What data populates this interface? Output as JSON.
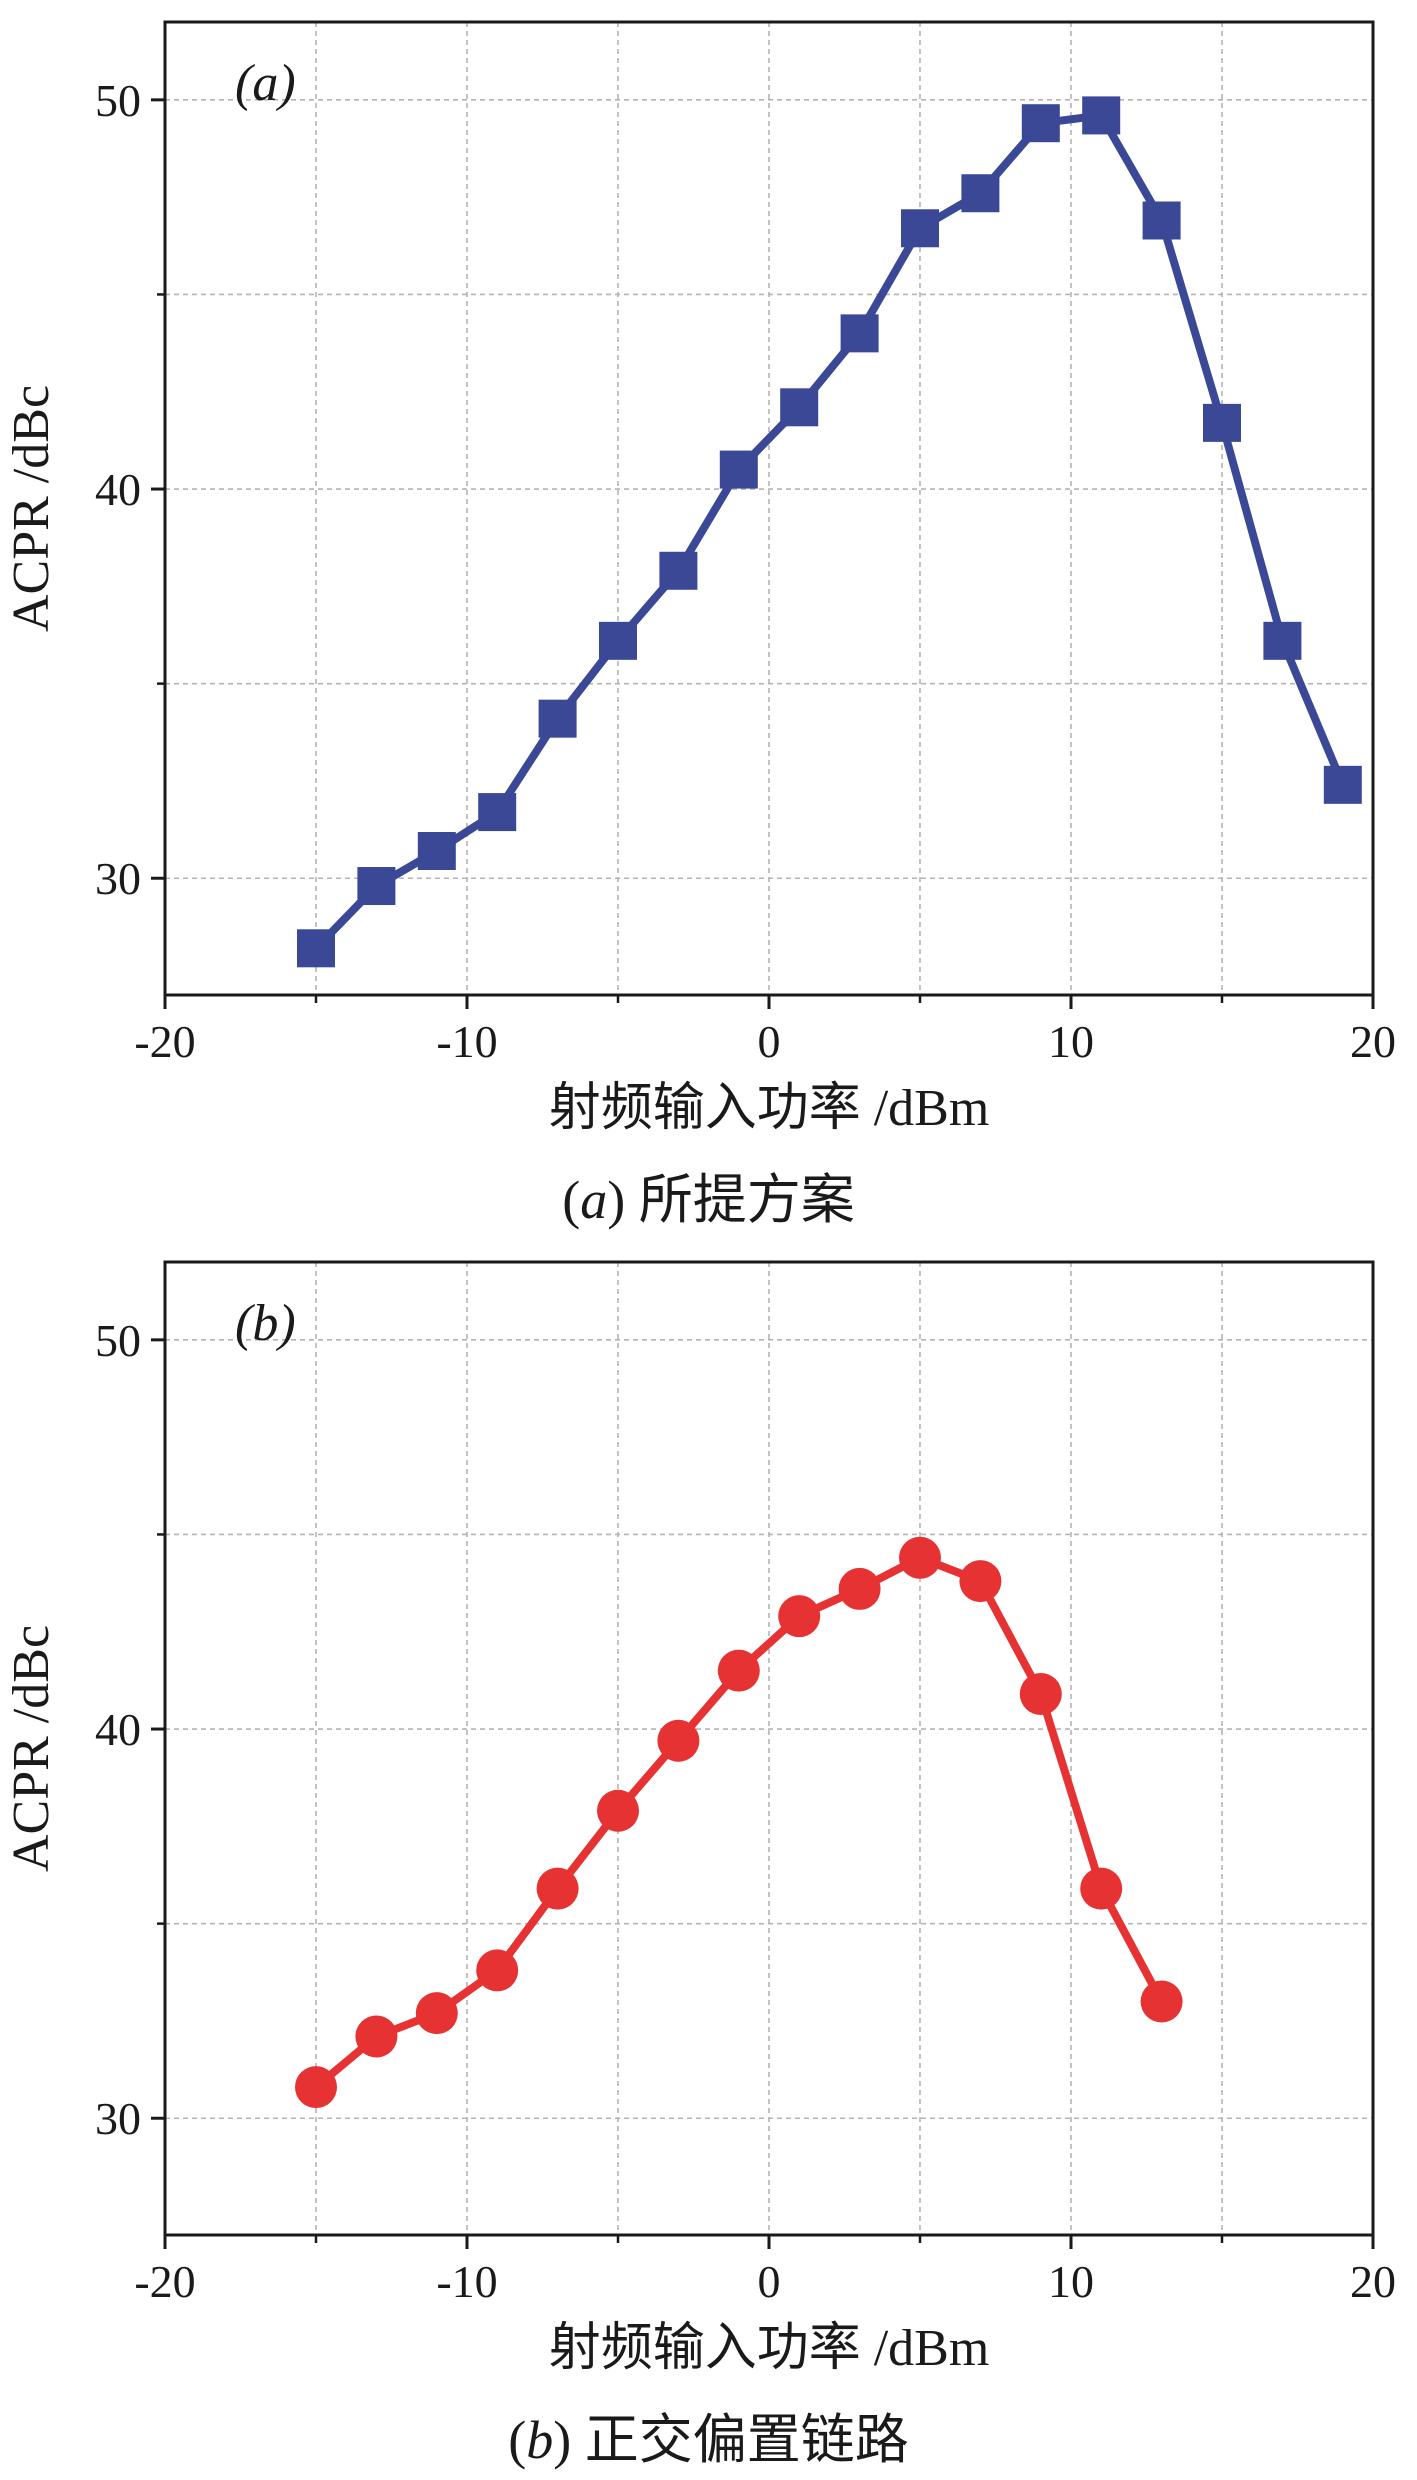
{
  "chart_data": [
    {
      "type": "line",
      "panel_label": "(a)",
      "caption_letter": "a",
      "caption_text": "所提方案",
      "xlabel": "射频输入功率 /dBm",
      "ylabel": "ACPR /dBc",
      "xlim": [
        -20,
        20
      ],
      "ylim": [
        27,
        52
      ],
      "xticks": [
        -20,
        -10,
        0,
        10,
        20
      ],
      "yticks": [
        30,
        40,
        50
      ],
      "minor_xgrid": [
        -15,
        -5,
        5,
        15
      ],
      "minor_ygrid": [
        35,
        45
      ],
      "grid": true,
      "marker": "square",
      "color": "#3a4896",
      "series": [
        {
          "x": [
            -15,
            -13,
            -11,
            -9,
            -7,
            -5,
            -3,
            -1,
            1,
            3,
            5,
            7,
            9,
            11,
            13,
            15,
            17,
            19
          ],
          "values": [
            28.2,
            29.8,
            30.7,
            31.7,
            34.1,
            36.1,
            37.9,
            40.5,
            42.1,
            44.0,
            46.7,
            47.6,
            49.4,
            49.6,
            46.9,
            41.7,
            36.1,
            32.4
          ]
        }
      ]
    },
    {
      "type": "line",
      "panel_label": "(b)",
      "caption_letter": "b",
      "caption_text": "正交偏置链路",
      "xlabel": "射频输入功率 /dBm",
      "ylabel": "ACPR /dBc",
      "xlim": [
        -20,
        20
      ],
      "ylim": [
        27,
        52
      ],
      "xticks": [
        -20,
        -10,
        0,
        10,
        20
      ],
      "yticks": [
        30,
        40,
        50
      ],
      "minor_xgrid": [
        -15,
        -5,
        5,
        15
      ],
      "minor_ygrid": [
        35,
        45
      ],
      "grid": true,
      "marker": "circle",
      "color": "#e63232",
      "series": [
        {
          "x": [
            -15,
            -13,
            -11,
            -9,
            -7,
            -5,
            -3,
            -1,
            1,
            3,
            5,
            7,
            9,
            11,
            13
          ],
          "values": [
            30.8,
            32.1,
            32.7,
            33.8,
            35.9,
            37.9,
            39.7,
            41.5,
            42.9,
            43.6,
            44.4,
            43.8,
            40.9,
            35.9,
            33.0
          ]
        }
      ]
    }
  ]
}
